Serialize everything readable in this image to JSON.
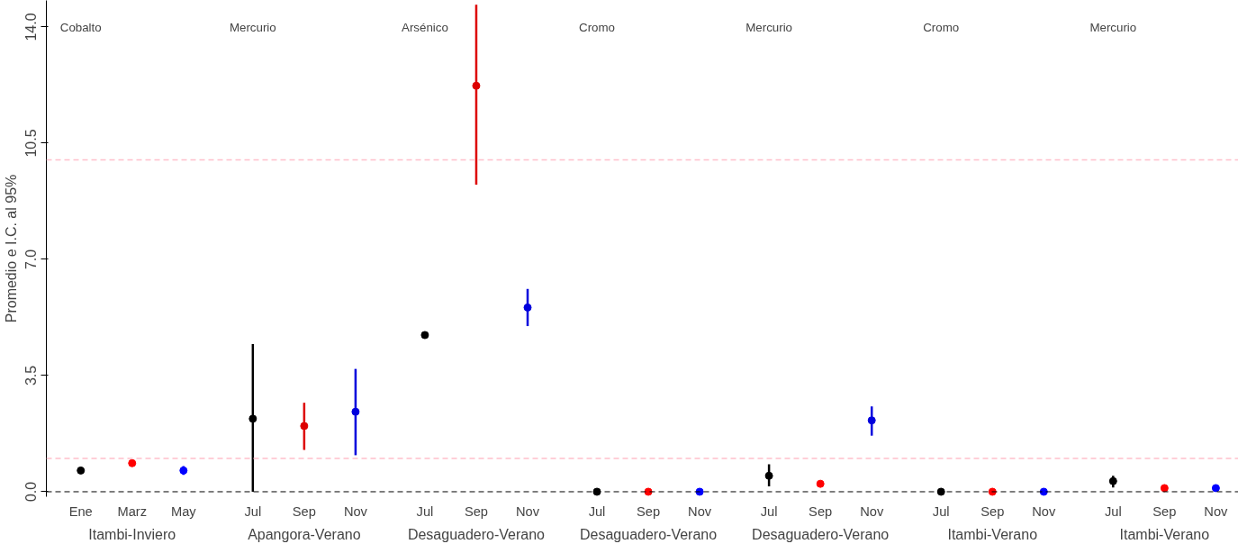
{
  "chart_data": {
    "type": "scatter",
    "ylabel": "Promedio e I.C. al 95%",
    "categories": [
      "Ene",
      "Marz",
      "May",
      "Jul",
      "Sep",
      "Nov",
      "Jul",
      "Sep",
      "Nov",
      "Jul",
      "Sep",
      "Nov",
      "Jul",
      "Sep",
      "Nov",
      "Jul",
      "Sep",
      "Nov",
      "Jul",
      "Sep",
      "Nov"
    ],
    "values": [
      0.64,
      0.86,
      0.64,
      2.2,
      1.98,
      2.41,
      4.72,
      12.23,
      5.55,
      0,
      0,
      0,
      0.48,
      0.24,
      2.15,
      0,
      0,
      0,
      0.32,
      0.11,
      0.11
    ],
    "colors": [
      "#000000",
      "#ff0000",
      "#0000ff",
      "#000000",
      "#dd0000",
      "#0000dd",
      "#000000",
      "#dd0000",
      "#0000dd",
      "#000000",
      "#ff0000",
      "#0000ff",
      "#000000",
      "#ff0000",
      "#0000dd",
      "#000000",
      "#ff0000",
      "#0000ff",
      "#000000",
      "#ff0000",
      "#0000ff"
    ],
    "errors": [
      null,
      null,
      0.13,
      [
        0,
        4.45
      ],
      [
        1.26,
        2.68
      ],
      [
        1.1,
        3.7
      ],
      null,
      [
        9.25,
        14.67
      ],
      [
        4.99,
        6.11
      ],
      null,
      null,
      null,
      [
        0.16,
        0.83
      ],
      null,
      [
        1.69,
        2.57
      ],
      null,
      null,
      null,
      [
        0.13,
        0.48
      ],
      null,
      null
    ],
    "ylim": [
      -0.15,
      14.8
    ],
    "yticks": [
      {
        "value": 0,
        "label": "0.0"
      },
      {
        "value": 3.5,
        "label": "3.5"
      },
      {
        "value": 7,
        "label": "7.0"
      },
      {
        "value": 10.5,
        "label": "10.5"
      },
      {
        "value": 14,
        "label": "14.0"
      }
    ],
    "ref_lines": [
      {
        "axis": "y",
        "value": 10,
        "color": "#ffc0cb",
        "line_style": "dashed"
      },
      {
        "axis": "y",
        "value": 1,
        "color": "#ffc0cb",
        "line_style": "dashed"
      },
      {
        "axis": "y",
        "value": 0,
        "color": "#000000",
        "line_style": "dashed"
      }
    ],
    "annotations": [
      "Cobalto",
      "Mercurio",
      "Arsénico",
      "Cromo",
      "Mercurio",
      "Cromo",
      "Mercurio",
      "Itambi-Inviero",
      "Apangora-Verano",
      "Desaguadero-Verano",
      "Desaguadero-Verano",
      "Desaguadero-Verano",
      "Itambi-Verano",
      "Itambi-Verano"
    ],
    "marker": "circle",
    "grid": false
  }
}
